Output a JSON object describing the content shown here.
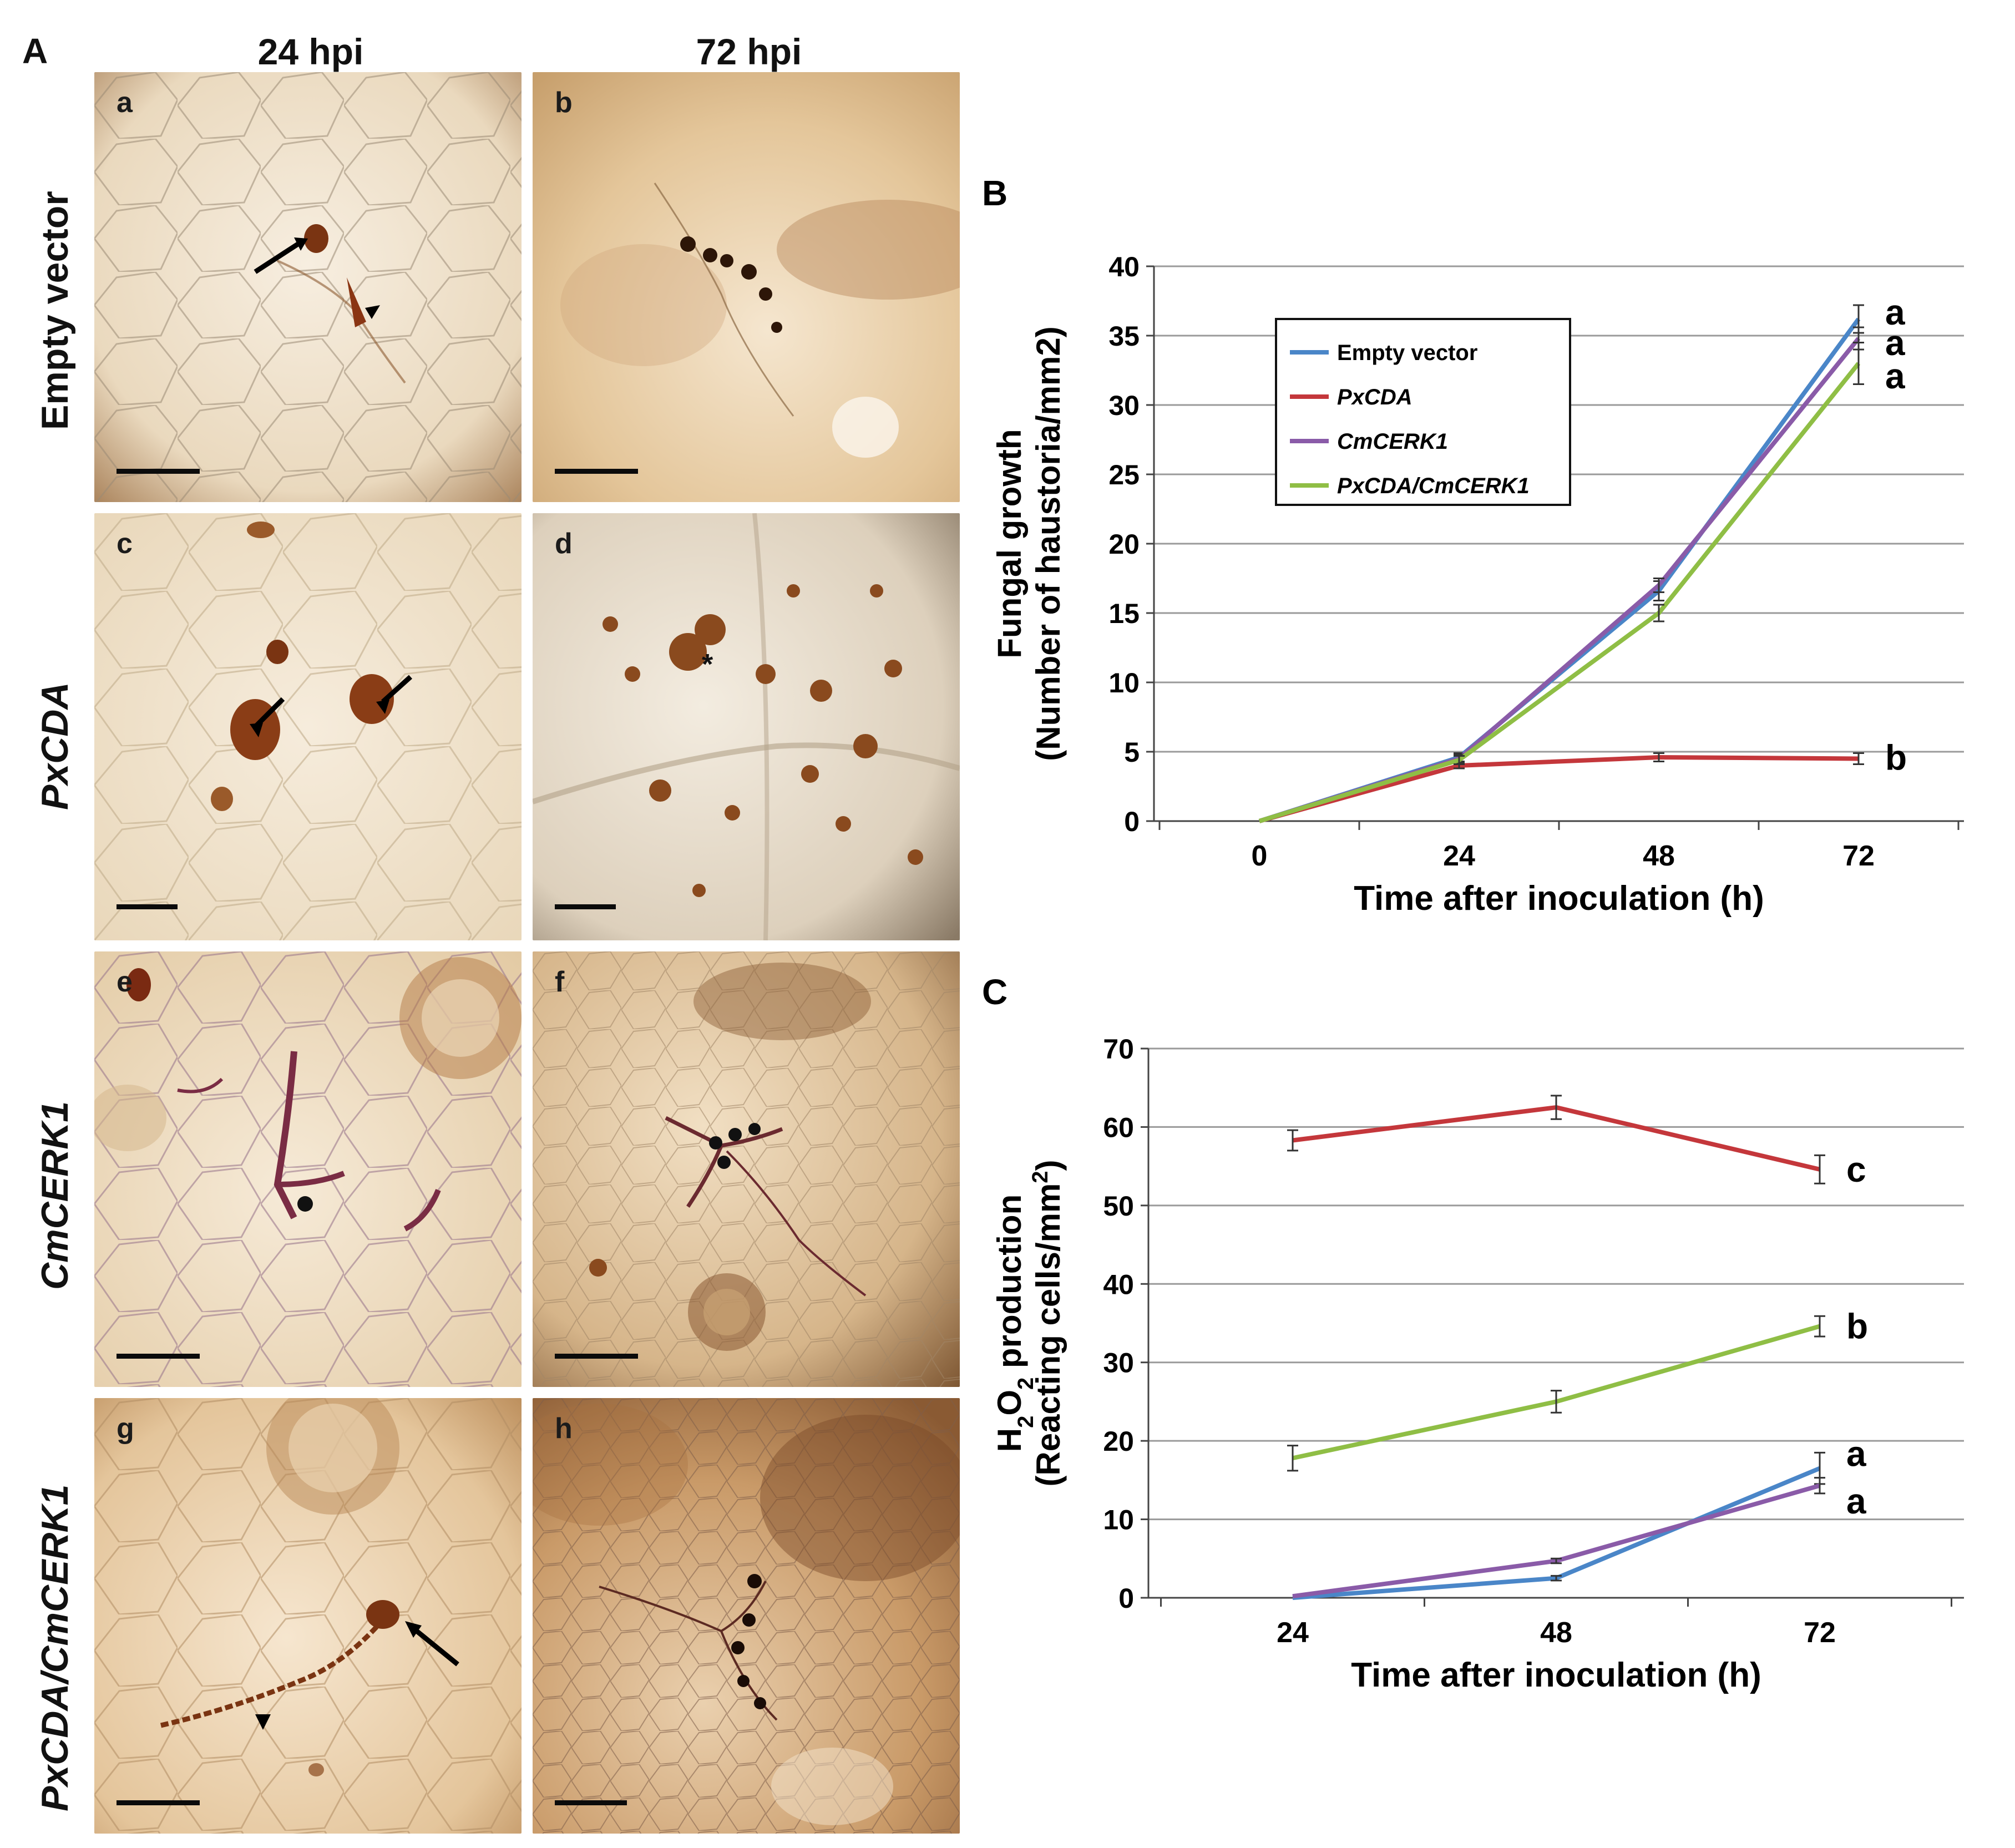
{
  "figure": {
    "panel_A_label": "A",
    "column_headers": [
      "24 hpi",
      "72 hpi"
    ],
    "row_labels": [
      "Empty vector",
      "PxCDA",
      "CmCERK1",
      "PxCDA/CmCERK1"
    ],
    "sub_panels": [
      "a",
      "b",
      "c",
      "d",
      "e",
      "f",
      "g",
      "h"
    ],
    "colors": {
      "empty_vector": "#4a86c8",
      "pxcda": "#c4373b",
      "cmcerk1": "#8a5ba8",
      "pxcda_cmcerk1": "#8fbe45",
      "tissue_light": "#f3e6d0",
      "tissue_mid": "#e0c9a4",
      "stain": "#7a3412"
    }
  },
  "chart_data": [
    {
      "panel": "B",
      "type": "line",
      "ylabel_line1": "Fungal growth",
      "ylabel_line2": "(Number of haustoria/mm2)",
      "xlabel": "Time after inoculation (h)",
      "x": [
        0,
        24,
        48,
        72
      ],
      "xtick_labels": [
        "0",
        "24",
        "48",
        "72"
      ],
      "ylim": [
        0,
        40
      ],
      "yticks": [
        0,
        5,
        10,
        15,
        20,
        25,
        30,
        35,
        40
      ],
      "grid": true,
      "legend_position": "top-left",
      "series": [
        {
          "name": "Empty vector",
          "italic": false,
          "color": "#4a86c8",
          "values": [
            0,
            4.6,
            16.6,
            36.2
          ],
          "errors": [
            0,
            0.3,
            0.7,
            1.0
          ],
          "sig": "a"
        },
        {
          "name": "PxCDA",
          "italic": true,
          "color": "#c4373b",
          "values": [
            0,
            4.0,
            4.6,
            4.5
          ],
          "errors": [
            0,
            0.2,
            0.3,
            0.4
          ],
          "sig": "b"
        },
        {
          "name": "CmCERK1",
          "italic": true,
          "color": "#8a5ba8",
          "values": [
            0,
            4.5,
            17.0,
            34.8
          ],
          "errors": [
            0,
            0.3,
            0.5,
            0.8
          ],
          "sig": "a"
        },
        {
          "name": "PxCDA/CmCERK1",
          "italic": true,
          "color": "#8fbe45",
          "values": [
            0,
            4.4,
            15.0,
            33.0
          ],
          "errors": [
            0,
            0.3,
            0.6,
            1.5
          ],
          "sig": "a"
        }
      ]
    },
    {
      "panel": "C",
      "type": "line",
      "ylabel_line1": "H2O2 production",
      "ylabel_line2": "(Reacting cells/mm2)",
      "xlabel": "Time after inoculation (h)",
      "x": [
        24,
        48,
        72
      ],
      "xtick_labels": [
        "24",
        "48",
        "72"
      ],
      "ylim": [
        0,
        70
      ],
      "yticks": [
        0,
        10,
        20,
        30,
        40,
        50,
        60,
        70
      ],
      "grid": true,
      "series": [
        {
          "name": "PxCDA",
          "color": "#c4373b",
          "values": [
            58.3,
            62.5,
            54.6
          ],
          "errors": [
            1.3,
            1.5,
            1.8
          ],
          "sig": "c"
        },
        {
          "name": "PxCDA/CmCERK1",
          "color": "#8fbe45",
          "values": [
            17.8,
            25.0,
            34.6
          ],
          "errors": [
            1.6,
            1.4,
            1.3
          ],
          "sig": "b"
        },
        {
          "name": "Empty vector",
          "color": "#4a86c8",
          "values": [
            0,
            2.5,
            16.5
          ],
          "errors": [
            0,
            0.3,
            2.0
          ],
          "sig": "a"
        },
        {
          "name": "CmCERK1",
          "color": "#8a5ba8",
          "values": [
            0.2,
            4.7,
            14.3
          ],
          "errors": [
            0,
            0.3,
            1.0
          ],
          "sig": "a"
        }
      ]
    }
  ]
}
